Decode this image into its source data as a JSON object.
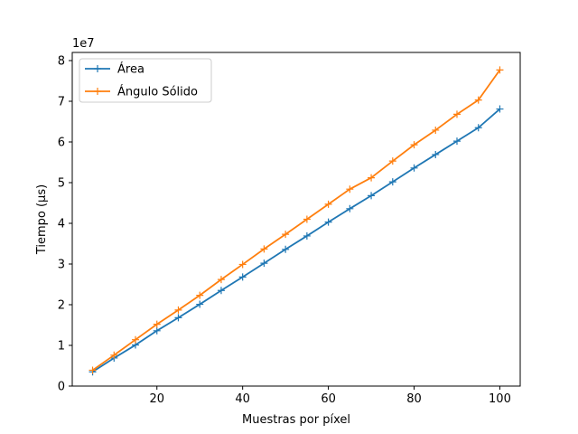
{
  "chart_data": {
    "type": "line",
    "xlabel": "Muestras por píxel",
    "ylabel": "Tiempo (μs)",
    "y_offset_label": "1e7",
    "xlim": [
      0.25,
      104.75
    ],
    "ylim": [
      0,
      8.2
    ],
    "x_ticks": [
      20,
      40,
      60,
      80,
      100
    ],
    "y_ticks": [
      0,
      1,
      2,
      3,
      4,
      5,
      6,
      7,
      8
    ],
    "legend_position": "top-left",
    "grid": false,
    "x": [
      5,
      10,
      15,
      20,
      25,
      30,
      35,
      40,
      45,
      50,
      55,
      60,
      65,
      70,
      75,
      80,
      85,
      90,
      95,
      100
    ],
    "series": [
      {
        "name": "Área",
        "color": "#1f77b4",
        "marker": "+",
        "values": [
          0.35,
          0.69,
          1.01,
          1.36,
          1.68,
          2.01,
          2.35,
          2.68,
          3.02,
          3.36,
          3.69,
          4.03,
          4.36,
          4.68,
          5.02,
          5.36,
          5.69,
          6.02,
          6.35,
          6.81
        ]
      },
      {
        "name": "Ángulo Sólido",
        "color": "#ff7f0e",
        "marker": "+",
        "values": [
          0.39,
          0.76,
          1.14,
          1.52,
          1.87,
          2.23,
          2.62,
          2.99,
          3.37,
          3.73,
          4.1,
          4.47,
          4.84,
          5.12,
          5.53,
          5.93,
          6.29,
          6.68,
          7.03,
          7.77
        ]
      }
    ]
  }
}
